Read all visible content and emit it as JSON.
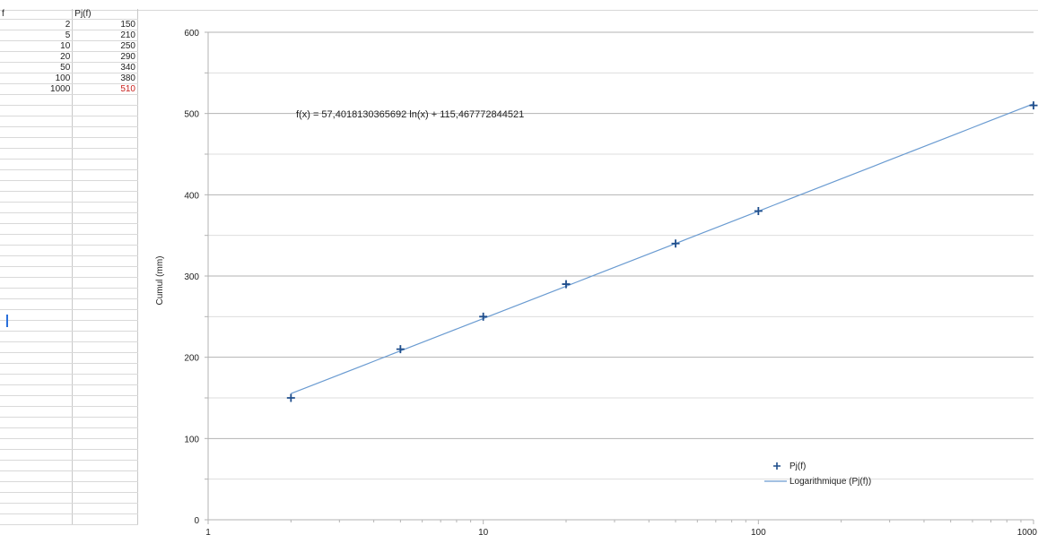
{
  "spreadsheet": {
    "headers": [
      "f",
      "Pj(f)"
    ],
    "rows": [
      [
        "2",
        "150"
      ],
      [
        "5",
        "210"
      ],
      [
        "10",
        "250"
      ],
      [
        "20",
        "290"
      ],
      [
        "50",
        "340"
      ],
      [
        "100",
        "380"
      ],
      [
        "1000",
        "510"
      ]
    ],
    "highlight_color": "#c9211e"
  },
  "chart_data": {
    "type": "scatter",
    "title": "",
    "xlabel": "",
    "ylabel": "Cumul (mm)",
    "x_scale": "log",
    "xlim": [
      1,
      1000
    ],
    "ylim": [
      0,
      600
    ],
    "x_ticks": [
      1,
      10,
      100,
      1000
    ],
    "x_tick_labels": [
      "1",
      "10",
      "100",
      "1000"
    ],
    "y_ticks": [
      0,
      100,
      200,
      300,
      400,
      500,
      600
    ],
    "y_tick_labels": [
      "0",
      "100",
      "200",
      "300",
      "400",
      "500",
      "600"
    ],
    "grid": true,
    "legend_position": "bottom-right",
    "series": [
      {
        "name": "Pj(f)",
        "marker": "plus",
        "color": "#1f4e8c",
        "x": [
          2,
          5,
          10,
          20,
          50,
          100,
          1000
        ],
        "y": [
          150,
          210,
          250,
          290,
          340,
          380,
          510
        ]
      }
    ],
    "trendline": {
      "name": "Logarithmique (Pj(f))",
      "type": "logarithmic",
      "color": "#6a9bd1",
      "a": 57.4018130365692,
      "b": 115.467772844521,
      "equation_label": "f(x) = 57,4018130365692 ln(x) + 115,467772844521"
    }
  }
}
